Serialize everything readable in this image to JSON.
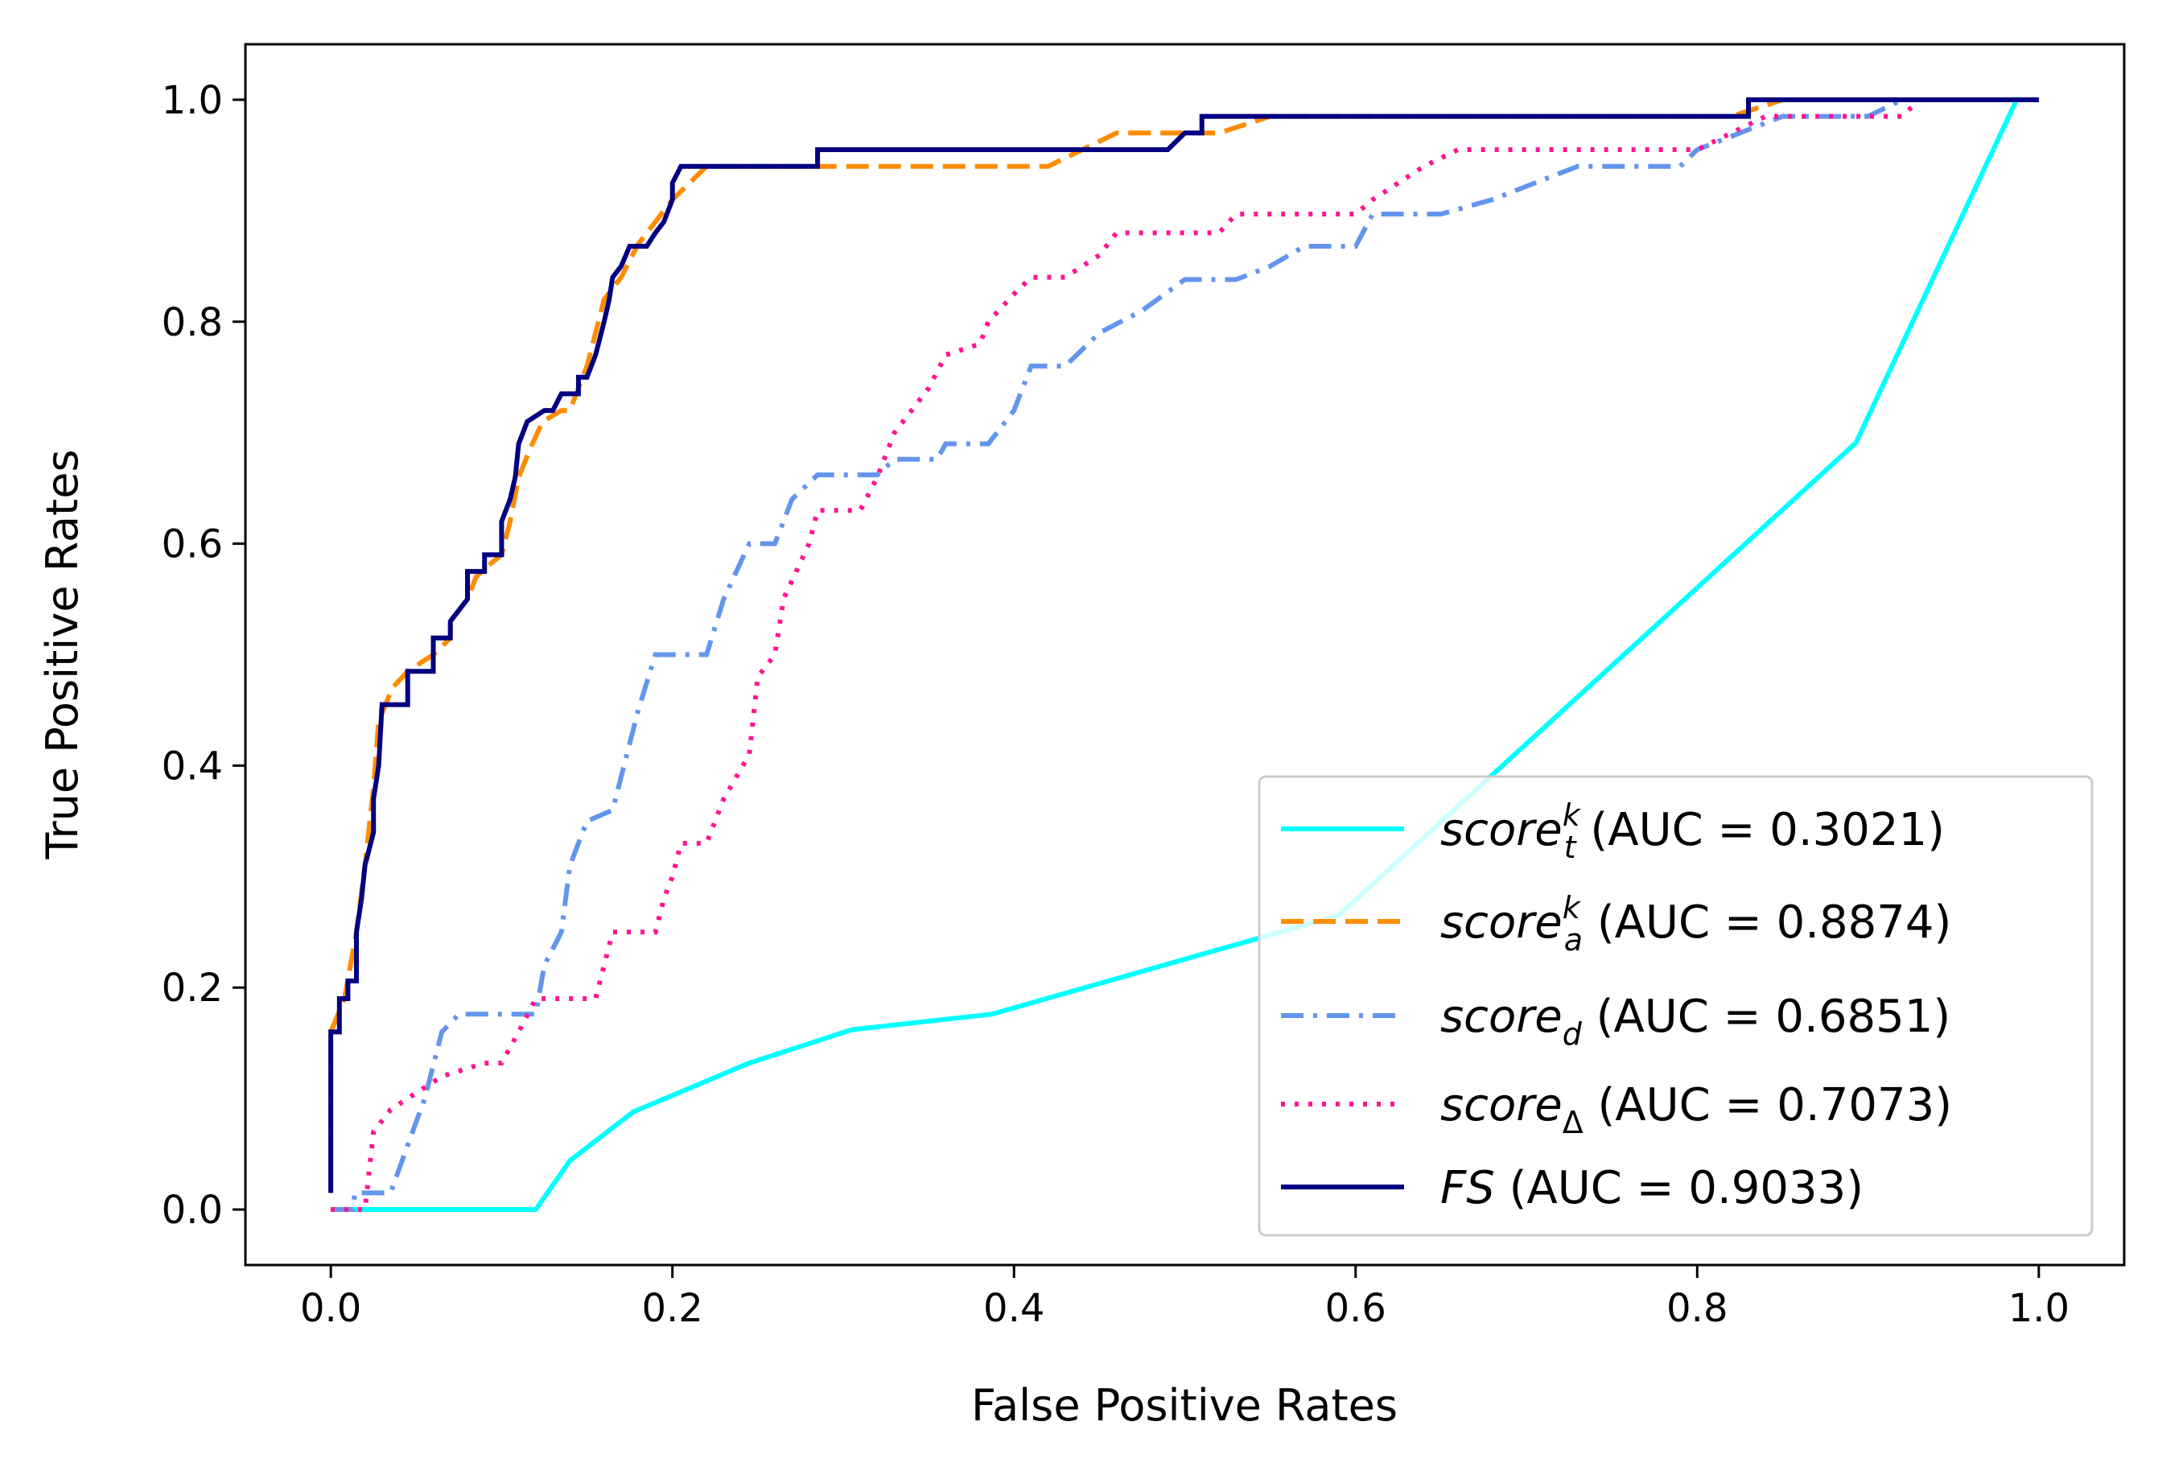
{
  "chart_data": {
    "type": "line",
    "title": "",
    "xlabel": "False Positive Rates",
    "ylabel": "True Positive Rates",
    "xlim": [
      -0.05,
      1.05
    ],
    "ylim": [
      -0.05,
      1.05
    ],
    "xticks": [
      "0.0",
      "0.2",
      "0.4",
      "0.6",
      "0.8",
      "1.0"
    ],
    "yticks": [
      "0.0",
      "0.2",
      "0.4",
      "0.6",
      "0.8",
      "1.0"
    ],
    "grid": false,
    "legend_position": "lower-right",
    "series": [
      {
        "name": "score_t^k (AUC = 0.3021)",
        "name_parts": {
          "base": "score",
          "sub": "t",
          "sup": "k",
          "auc": " (AUC = 0.3021)"
        },
        "color": "#00FFFF",
        "style": "solid",
        "points": [
          [
            0,
            0
          ],
          [
            0.12,
            0
          ],
          [
            0.14,
            0.044
          ],
          [
            0.177,
            0.088
          ],
          [
            0.245,
            0.132
          ],
          [
            0.305,
            0.162
          ],
          [
            0.387,
            0.176
          ],
          [
            0.59,
            0.265
          ],
          [
            0.893,
            0.691
          ],
          [
            0.987,
            1.0
          ],
          [
            1.0,
            1.0
          ]
        ]
      },
      {
        "name": "score_a^k (AUC = 0.8874)",
        "name_parts": {
          "base": "score",
          "sub": "a",
          "sup": "k",
          "auc": " (AUC = 0.8874)"
        },
        "color": "#FF8C00",
        "style": "dashed",
        "points": [
          [
            0,
            0.015
          ],
          [
            0,
            0.16
          ],
          [
            0.008,
            0.19
          ],
          [
            0.015,
            0.25
          ],
          [
            0.02,
            0.31
          ],
          [
            0.025,
            0.38
          ],
          [
            0.028,
            0.44
          ],
          [
            0.036,
            0.47
          ],
          [
            0.045,
            0.485
          ],
          [
            0.06,
            0.5
          ],
          [
            0.07,
            0.515
          ],
          [
            0.07,
            0.53
          ],
          [
            0.08,
            0.55
          ],
          [
            0.085,
            0.57
          ],
          [
            0.092,
            0.58
          ],
          [
            0.1,
            0.59
          ],
          [
            0.105,
            0.62
          ],
          [
            0.11,
            0.66
          ],
          [
            0.118,
            0.69
          ],
          [
            0.124,
            0.71
          ],
          [
            0.135,
            0.72
          ],
          [
            0.14,
            0.72
          ],
          [
            0.145,
            0.74
          ],
          [
            0.15,
            0.76
          ],
          [
            0.155,
            0.79
          ],
          [
            0.16,
            0.82
          ],
          [
            0.17,
            0.84
          ],
          [
            0.18,
            0.87
          ],
          [
            0.19,
            0.89
          ],
          [
            0.2,
            0.91
          ],
          [
            0.21,
            0.925
          ],
          [
            0.22,
            0.94
          ],
          [
            0.42,
            0.94
          ],
          [
            0.44,
            0.955
          ],
          [
            0.46,
            0.97
          ],
          [
            0.5,
            0.97
          ],
          [
            0.52,
            0.97
          ],
          [
            0.55,
            0.985
          ],
          [
            0.82,
            0.985
          ],
          [
            0.85,
            1.0
          ],
          [
            1.0,
            1.0
          ]
        ]
      },
      {
        "name": "score_d (AUC = 0.6851)",
        "name_parts": {
          "base": "score",
          "sub": "d",
          "sup": "",
          "auc": " (AUC = 0.6851)"
        },
        "color": "#6495ED",
        "style": "dashdot",
        "points": [
          [
            0,
            0
          ],
          [
            0.013,
            0
          ],
          [
            0.014,
            0.015
          ],
          [
            0.035,
            0.015
          ],
          [
            0.045,
            0.058
          ],
          [
            0.055,
            0.1
          ],
          [
            0.065,
            0.16
          ],
          [
            0.075,
            0.176
          ],
          [
            0.12,
            0.176
          ],
          [
            0.125,
            0.22
          ],
          [
            0.135,
            0.25
          ],
          [
            0.14,
            0.31
          ],
          [
            0.15,
            0.35
          ],
          [
            0.165,
            0.36
          ],
          [
            0.18,
            0.45
          ],
          [
            0.19,
            0.5
          ],
          [
            0.22,
            0.5
          ],
          [
            0.23,
            0.55
          ],
          [
            0.245,
            0.6
          ],
          [
            0.26,
            0.6
          ],
          [
            0.27,
            0.64
          ],
          [
            0.285,
            0.662
          ],
          [
            0.32,
            0.662
          ],
          [
            0.33,
            0.676
          ],
          [
            0.355,
            0.676
          ],
          [
            0.36,
            0.69
          ],
          [
            0.385,
            0.69
          ],
          [
            0.4,
            0.72
          ],
          [
            0.41,
            0.76
          ],
          [
            0.43,
            0.76
          ],
          [
            0.45,
            0.79
          ],
          [
            0.475,
            0.81
          ],
          [
            0.5,
            0.838
          ],
          [
            0.53,
            0.838
          ],
          [
            0.55,
            0.85
          ],
          [
            0.57,
            0.868
          ],
          [
            0.6,
            0.868
          ],
          [
            0.61,
            0.897
          ],
          [
            0.65,
            0.897
          ],
          [
            0.68,
            0.91
          ],
          [
            0.73,
            0.94
          ],
          [
            0.79,
            0.94
          ],
          [
            0.8,
            0.955
          ],
          [
            0.85,
            0.985
          ],
          [
            0.9,
            0.985
          ],
          [
            0.92,
            1.0
          ],
          [
            1.0,
            1.0
          ]
        ]
      },
      {
        "name": "score_Δ (AUC = 0.7073)",
        "name_parts": {
          "base": "score",
          "sub": "Δ",
          "sup": "",
          "auc": " (AUC = 0.7073)"
        },
        "color": "#FF1493",
        "style": "dotted",
        "points": [
          [
            0,
            0
          ],
          [
            0.02,
            0
          ],
          [
            0.025,
            0.07
          ],
          [
            0.035,
            0.09
          ],
          [
            0.045,
            0.1
          ],
          [
            0.065,
            0.12
          ],
          [
            0.09,
            0.132
          ],
          [
            0.1,
            0.132
          ],
          [
            0.11,
            0.16
          ],
          [
            0.12,
            0.19
          ],
          [
            0.155,
            0.19
          ],
          [
            0.165,
            0.25
          ],
          [
            0.19,
            0.25
          ],
          [
            0.195,
            0.28
          ],
          [
            0.2,
            0.3
          ],
          [
            0.205,
            0.33
          ],
          [
            0.22,
            0.33
          ],
          [
            0.23,
            0.37
          ],
          [
            0.245,
            0.41
          ],
          [
            0.25,
            0.48
          ],
          [
            0.26,
            0.5
          ],
          [
            0.265,
            0.55
          ],
          [
            0.28,
            0.6
          ],
          [
            0.285,
            0.63
          ],
          [
            0.31,
            0.63
          ],
          [
            0.32,
            0.66
          ],
          [
            0.33,
            0.7
          ],
          [
            0.34,
            0.72
          ],
          [
            0.35,
            0.74
          ],
          [
            0.36,
            0.77
          ],
          [
            0.38,
            0.78
          ],
          [
            0.385,
            0.8
          ],
          [
            0.4,
            0.825
          ],
          [
            0.41,
            0.84
          ],
          [
            0.43,
            0.84
          ],
          [
            0.45,
            0.86
          ],
          [
            0.46,
            0.88
          ],
          [
            0.52,
            0.88
          ],
          [
            0.53,
            0.897
          ],
          [
            0.6,
            0.897
          ],
          [
            0.61,
            0.91
          ],
          [
            0.625,
            0.925
          ],
          [
            0.64,
            0.94
          ],
          [
            0.66,
            0.955
          ],
          [
            0.8,
            0.955
          ],
          [
            0.82,
            0.97
          ],
          [
            0.84,
            0.985
          ],
          [
            0.92,
            0.985
          ],
          [
            0.93,
            1.0
          ],
          [
            1.0,
            1.0
          ]
        ]
      },
      {
        "name": "FS (AUC = 0.9033)",
        "name_parts": {
          "base": "FS",
          "sub": "",
          "sup": "",
          "auc": " (AUC = 0.9033)"
        },
        "color": "#000080",
        "style": "solid",
        "points": [
          [
            0,
            0.015
          ],
          [
            0,
            0.16
          ],
          [
            0.005,
            0.16
          ],
          [
            0.005,
            0.19
          ],
          [
            0.01,
            0.19
          ],
          [
            0.01,
            0.206
          ],
          [
            0.015,
            0.206
          ],
          [
            0.015,
            0.25
          ],
          [
            0.018,
            0.28
          ],
          [
            0.02,
            0.31
          ],
          [
            0.025,
            0.34
          ],
          [
            0.025,
            0.37
          ],
          [
            0.028,
            0.4
          ],
          [
            0.03,
            0.455
          ],
          [
            0.045,
            0.455
          ],
          [
            0.045,
            0.485
          ],
          [
            0.06,
            0.485
          ],
          [
            0.06,
            0.515
          ],
          [
            0.07,
            0.515
          ],
          [
            0.07,
            0.53
          ],
          [
            0.08,
            0.55
          ],
          [
            0.08,
            0.575
          ],
          [
            0.09,
            0.575
          ],
          [
            0.09,
            0.59
          ],
          [
            0.1,
            0.59
          ],
          [
            0.1,
            0.62
          ],
          [
            0.105,
            0.64
          ],
          [
            0.108,
            0.66
          ],
          [
            0.11,
            0.69
          ],
          [
            0.115,
            0.71
          ],
          [
            0.125,
            0.72
          ],
          [
            0.13,
            0.72
          ],
          [
            0.135,
            0.735
          ],
          [
            0.145,
            0.735
          ],
          [
            0.145,
            0.75
          ],
          [
            0.15,
            0.75
          ],
          [
            0.155,
            0.77
          ],
          [
            0.16,
            0.8
          ],
          [
            0.163,
            0.82
          ],
          [
            0.165,
            0.84
          ],
          [
            0.17,
            0.85
          ],
          [
            0.175,
            0.868
          ],
          [
            0.185,
            0.868
          ],
          [
            0.19,
            0.88
          ],
          [
            0.195,
            0.89
          ],
          [
            0.2,
            0.91
          ],
          [
            0.2,
            0.925
          ],
          [
            0.205,
            0.94
          ],
          [
            0.285,
            0.94
          ],
          [
            0.285,
            0.955
          ],
          [
            0.49,
            0.955
          ],
          [
            0.5,
            0.97
          ],
          [
            0.51,
            0.97
          ],
          [
            0.51,
            0.985
          ],
          [
            0.83,
            0.985
          ],
          [
            0.83,
            1.0
          ],
          [
            1.0,
            1.0
          ]
        ]
      }
    ]
  }
}
